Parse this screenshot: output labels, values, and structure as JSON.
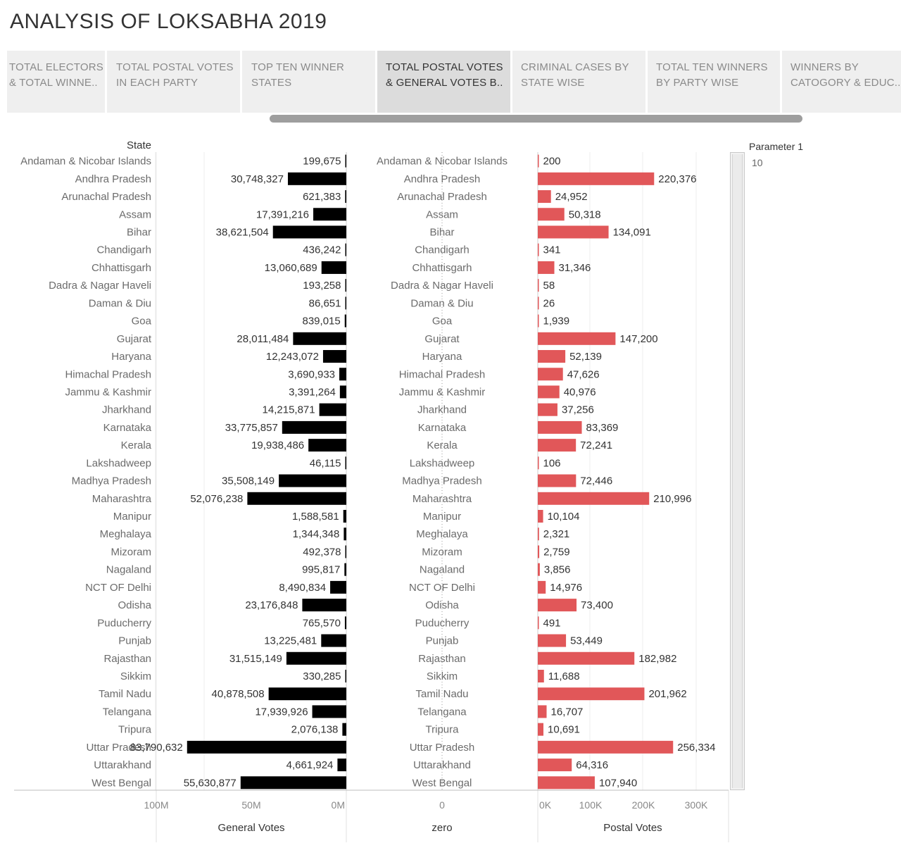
{
  "title": "ANALYSIS OF LOKSABHA 2019",
  "tabs": [
    {
      "line1": "TOTAL ELECTORS",
      "line2": "& TOTAL WINNE..",
      "active": false
    },
    {
      "line1": "TOTAL POSTAL VOTES",
      "line2": "IN EACH PARTY",
      "active": false
    },
    {
      "line1": "TOP  TEN WINNER",
      "line2": "STATES",
      "active": false
    },
    {
      "line1": "TOTAL POSTAL VOTES",
      "line2": "& GENERAL VOTES  B..",
      "active": true
    },
    {
      "line1": "CRIMINAL CASES BY",
      "line2": "STATE WISE",
      "active": false
    },
    {
      "line1": "TOTAL TEN WINNERS",
      "line2": "BY PARTY WISE",
      "active": false
    },
    {
      "line1": "WINNERS BY",
      "line2": "CATOGORY & EDUC..",
      "active": false
    }
  ],
  "parameter": {
    "title": "Parameter 1",
    "value": "10"
  },
  "chart_data": {
    "type": "bar",
    "state_header": "State",
    "categories": [
      "Andaman & Nicobar Islands",
      "Andhra Pradesh",
      "Arunachal Pradesh",
      "Assam",
      "Bihar",
      "Chandigarh",
      "Chhattisgarh",
      "Dadra & Nagar Haveli",
      "Daman & Diu",
      "Goa",
      "Gujarat",
      "Haryana",
      "Himachal Pradesh",
      "Jammu & Kashmir",
      "Jharkhand",
      "Karnataka",
      "Kerala",
      "Lakshadweep",
      "Madhya Pradesh",
      "Maharashtra",
      "Manipur",
      "Meghalaya",
      "Mizoram",
      "Nagaland",
      "NCT OF Delhi",
      "Odisha",
      "Puducherry",
      "Punjab",
      "Rajasthan",
      "Sikkim",
      "Tamil Nadu",
      "Telangana",
      "Tripura",
      "Uttar Pradesh",
      "Uttarakhand",
      "West Bengal"
    ],
    "series": [
      {
        "name": "General Votes",
        "color": "#000000",
        "values": [
          199675,
          30748327,
          621383,
          17391216,
          38621504,
          436242,
          13060689,
          193258,
          86651,
          839015,
          28011484,
          12243072,
          3690933,
          3391264,
          14215871,
          33775857,
          19938486,
          46115,
          35508149,
          52076238,
          1588581,
          1344348,
          492378,
          995817,
          8490834,
          23176848,
          765570,
          13225481,
          31515149,
          330285,
          40878508,
          17939926,
          2076138,
          83790632,
          4661924,
          55630877
        ],
        "labels": [
          "199,675",
          "30,748,327",
          "621,383",
          "17,391,216",
          "38,621,504",
          "436,242",
          "13,060,689",
          "193,258",
          "86,651",
          "839,015",
          "28,011,484",
          "12,243,072",
          "3,690,933",
          "3,391,264",
          "14,215,871",
          "33,775,857",
          "19,938,486",
          "46,115",
          "35,508,149",
          "52,076,238",
          "1,588,581",
          "1,344,348",
          "492,378",
          "995,817",
          "8,490,834",
          "23,176,848",
          "765,570",
          "13,225,481",
          "31,515,149",
          "330,285",
          "40,878,508",
          "17,939,926",
          "2,076,138",
          "83,790,632",
          "4,661,924",
          "55,630,877"
        ],
        "axis_title": "General Votes",
        "ticks": [
          "100M",
          "50M",
          "0M"
        ],
        "tick_values": [
          100000000,
          50000000,
          0
        ],
        "reversed": true
      },
      {
        "name": "zero",
        "axis_title": "zero",
        "ticks": [
          "0"
        ]
      },
      {
        "name": "Postal Votes",
        "color": "#e15759",
        "values": [
          200,
          220376,
          24952,
          50318,
          134091,
          341,
          31346,
          58,
          26,
          1939,
          147200,
          52139,
          47626,
          40976,
          37256,
          83369,
          72241,
          106,
          72446,
          210996,
          10104,
          2321,
          2759,
          3856,
          14976,
          73400,
          491,
          53449,
          182982,
          11688,
          201962,
          16707,
          10691,
          256334,
          64316,
          107940
        ],
        "labels": [
          "200",
          "220,376",
          "24,952",
          "50,318",
          "134,091",
          "341",
          "31,346",
          "58",
          "26",
          "1,939",
          "147,200",
          "52,139",
          "47,626",
          "40,976",
          "37,256",
          "83,369",
          "72,241",
          "106",
          "72,446",
          "210,996",
          "10,104",
          "2,321",
          "2,759",
          "3,856",
          "14,976",
          "73,400",
          "491",
          "53,449",
          "182,982",
          "11,688",
          "201,962",
          "16,707",
          "10,691",
          "256,334",
          "64,316",
          "107,940"
        ],
        "axis_title": "Postal Votes",
        "ticks": [
          "0K",
          "100K",
          "200K",
          "300K"
        ],
        "tick_values": [
          0,
          100000,
          200000,
          300000
        ]
      }
    ]
  }
}
